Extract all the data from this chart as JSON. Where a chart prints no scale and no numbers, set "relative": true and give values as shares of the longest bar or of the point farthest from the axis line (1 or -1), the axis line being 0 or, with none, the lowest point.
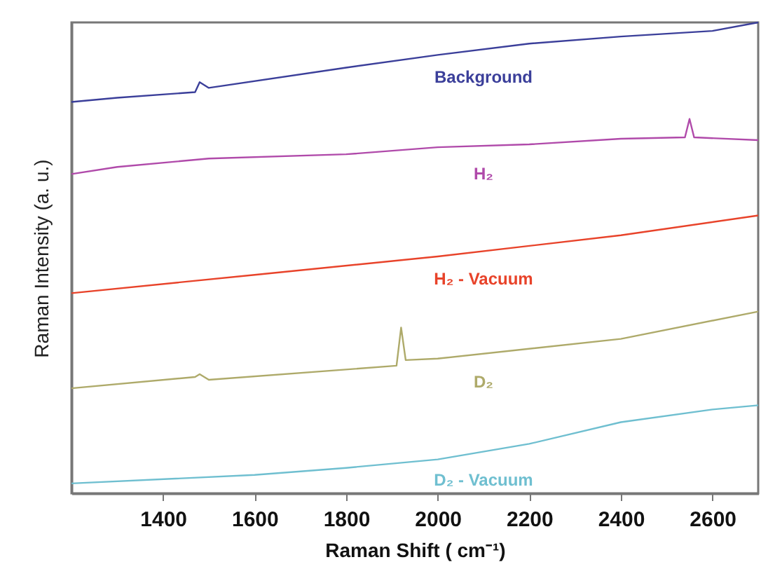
{
  "chart_data": {
    "type": "line",
    "xlabel": "Raman Shift ( cm⁻¹)",
    "ylabel": "Raman Intensity (a. u.)",
    "relative": true,
    "xlim": [
      1200,
      2700
    ],
    "xticks": [
      1400,
      1600,
      1800,
      2000,
      2200,
      2400,
      2600
    ],
    "grid": false,
    "tick_labels": "x",
    "series": [
      {
        "name": "Background",
        "color": "#3b3f9a",
        "x": [
          1200,
          1300,
          1470,
          1480,
          1500,
          1800,
          2000,
          2200,
          2400,
          2600,
          2700
        ],
        "values": [
          0.831,
          0.84,
          0.852,
          0.873,
          0.861,
          0.904,
          0.931,
          0.955,
          0.97,
          0.982,
          1.0
        ]
      },
      {
        "name": "H₂",
        "color": "#b04aaa",
        "x": [
          1200,
          1300,
          1500,
          1800,
          2000,
          2200,
          2400,
          2540,
          2550,
          2560,
          2700
        ],
        "values": [
          0.678,
          0.693,
          0.711,
          0.72,
          0.735,
          0.741,
          0.753,
          0.756,
          0.795,
          0.756,
          0.75
        ]
      },
      {
        "name": "H₂ - Vacuum",
        "color": "#e8432a",
        "x": [
          1200,
          1600,
          2000,
          2400,
          2700
        ],
        "values": [
          0.425,
          0.464,
          0.503,
          0.548,
          0.59
        ]
      },
      {
        "name": "D₂",
        "color": "#aeaa6a",
        "x": [
          1200,
          1470,
          1480,
          1500,
          1910,
          1920,
          1930,
          2000,
          2400,
          2700
        ],
        "values": [
          0.223,
          0.247,
          0.253,
          0.241,
          0.271,
          0.352,
          0.283,
          0.286,
          0.328,
          0.386
        ]
      },
      {
        "name": "D₂ - Vacuum",
        "color": "#6fbfd0",
        "x": [
          1200,
          1600,
          1800,
          2000,
          2200,
          2400,
          2600,
          2700
        ],
        "values": [
          0.021,
          0.039,
          0.054,
          0.072,
          0.105,
          0.151,
          0.178,
          0.187
        ]
      }
    ]
  }
}
